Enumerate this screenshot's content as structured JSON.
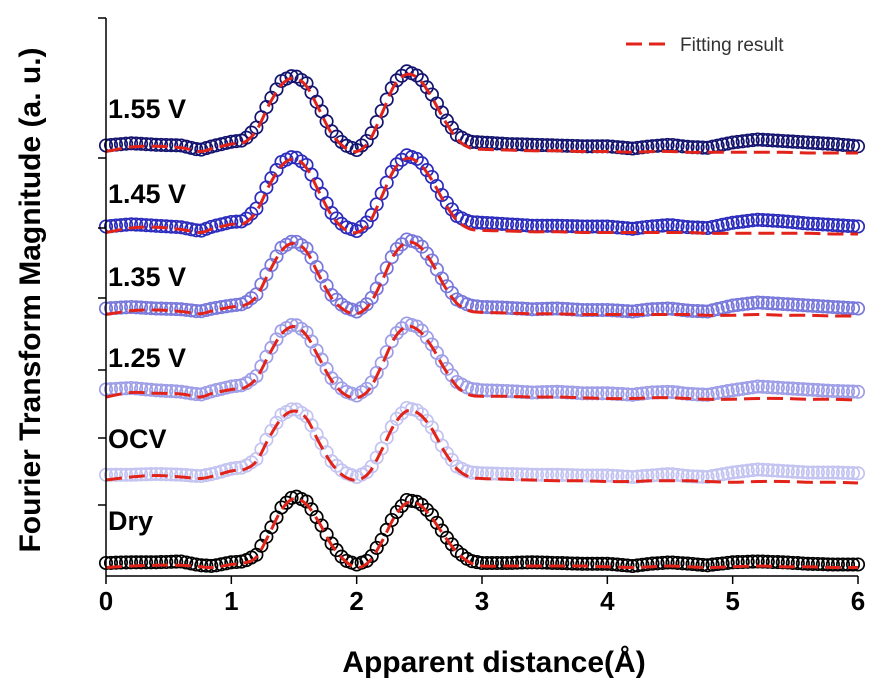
{
  "chart_data": {
    "type": "line",
    "title": "",
    "xlabel": "Apparent distance(Å)",
    "ylabel": "Fourier Transform Magnitude (a. u.)",
    "xlim": [
      0,
      6
    ],
    "x_ticks": [
      "0",
      "1",
      "2",
      "3",
      "4",
      "5",
      "6"
    ],
    "y_ticks_shown": false,
    "legend": {
      "position": "top-right",
      "entries": [
        "Fitting result"
      ]
    },
    "fit_color": "#e2231a",
    "x": [
      0.0,
      0.2,
      0.4,
      0.6,
      0.75,
      0.85,
      1.0,
      1.1,
      1.2,
      1.3,
      1.4,
      1.5,
      1.6,
      1.7,
      1.8,
      1.9,
      2.0,
      2.1,
      2.2,
      2.3,
      2.4,
      2.5,
      2.6,
      2.7,
      2.8,
      2.9,
      3.0,
      3.2,
      3.4,
      3.6,
      3.8,
      4.0,
      4.2,
      4.35,
      4.5,
      4.65,
      4.8,
      5.0,
      5.2,
      5.4,
      5.6,
      5.8,
      6.0
    ],
    "series": [
      {
        "name": "Dry",
        "color": "#000000",
        "values": [
          0.04,
          0.05,
          0.05,
          0.06,
          0.01,
          0.0,
          0.05,
          0.06,
          0.15,
          0.45,
          0.78,
          0.94,
          0.86,
          0.6,
          0.3,
          0.08,
          0.02,
          0.08,
          0.35,
          0.68,
          0.88,
          0.85,
          0.68,
          0.42,
          0.2,
          0.07,
          0.04,
          0.04,
          0.05,
          0.04,
          0.03,
          0.03,
          0.0,
          0.03,
          0.05,
          0.03,
          0.01,
          0.05,
          0.06,
          0.05,
          0.03,
          0.02,
          0.02
        ],
        "fit": [
          -0.02,
          0.0,
          0.01,
          0.01,
          -0.01,
          -0.02,
          0.02,
          0.04,
          0.12,
          0.42,
          0.75,
          0.9,
          0.82,
          0.58,
          0.28,
          0.08,
          -0.02,
          0.06,
          0.32,
          0.65,
          0.84,
          0.82,
          0.64,
          0.4,
          0.18,
          0.05,
          0.0,
          0.0,
          0.0,
          0.0,
          0.0,
          -0.01,
          -0.02,
          -0.01,
          0.0,
          -0.01,
          -0.02,
          -0.01,
          0.0,
          -0.01,
          -0.01,
          -0.02,
          -0.02
        ]
      },
      {
        "name": "OCV",
        "color": "#c3c3f2",
        "values": [
          0.07,
          0.07,
          0.08,
          0.07,
          0.05,
          0.08,
          0.15,
          0.17,
          0.28,
          0.6,
          0.87,
          0.96,
          0.85,
          0.55,
          0.25,
          0.1,
          0.04,
          0.12,
          0.42,
          0.78,
          0.96,
          0.92,
          0.7,
          0.4,
          0.18,
          0.1,
          0.09,
          0.08,
          0.07,
          0.07,
          0.06,
          0.06,
          0.04,
          0.06,
          0.08,
          0.05,
          0.04,
          0.1,
          0.14,
          0.12,
          0.1,
          0.1,
          0.09
        ],
        "fit": [
          0.0,
          0.04,
          0.06,
          0.04,
          0.02,
          0.05,
          0.12,
          0.14,
          0.25,
          0.56,
          0.82,
          0.92,
          0.82,
          0.5,
          0.22,
          0.05,
          0.0,
          0.1,
          0.4,
          0.74,
          0.92,
          0.88,
          0.68,
          0.38,
          0.15,
          0.04,
          0.02,
          0.01,
          0.0,
          -0.01,
          -0.01,
          -0.02,
          -0.02,
          -0.01,
          -0.01,
          -0.01,
          -0.02,
          -0.03,
          -0.02,
          -0.02,
          -0.03,
          -0.03,
          -0.04
        ]
      },
      {
        "name": "1.25 V",
        "color": "#9e9ee8",
        "values": [
          0.1,
          0.12,
          0.09,
          0.07,
          0.03,
          0.08,
          0.14,
          0.16,
          0.28,
          0.6,
          0.88,
          0.98,
          0.86,
          0.56,
          0.25,
          0.08,
          0.02,
          0.13,
          0.45,
          0.82,
          0.98,
          0.93,
          0.7,
          0.42,
          0.2,
          0.11,
          0.09,
          0.08,
          0.06,
          0.07,
          0.05,
          0.05,
          0.03,
          0.06,
          0.07,
          0.04,
          0.03,
          0.09,
          0.14,
          0.12,
          0.1,
          0.08,
          0.07
        ],
        "fit": [
          0.0,
          0.06,
          0.05,
          0.04,
          0.0,
          0.05,
          0.1,
          0.12,
          0.25,
          0.56,
          0.84,
          0.94,
          0.82,
          0.52,
          0.22,
          0.04,
          -0.01,
          0.1,
          0.42,
          0.78,
          0.94,
          0.88,
          0.67,
          0.38,
          0.14,
          0.03,
          0.01,
          0.01,
          0.0,
          0.0,
          -0.01,
          -0.02,
          -0.02,
          -0.01,
          -0.01,
          -0.02,
          -0.03,
          -0.03,
          -0.02,
          -0.02,
          -0.03,
          -0.03,
          -0.04
        ]
      },
      {
        "name": "1.35 V",
        "color": "#7878dc",
        "values": [
          0.06,
          0.08,
          0.06,
          0.05,
          0.02,
          0.06,
          0.1,
          0.12,
          0.25,
          0.58,
          0.87,
          0.97,
          0.86,
          0.55,
          0.24,
          0.08,
          0.02,
          0.14,
          0.45,
          0.82,
          0.98,
          0.93,
          0.7,
          0.4,
          0.18,
          0.1,
          0.08,
          0.07,
          0.05,
          0.06,
          0.04,
          0.04,
          0.02,
          0.05,
          0.06,
          0.03,
          0.02,
          0.1,
          0.14,
          0.12,
          0.1,
          0.08,
          0.06
        ],
        "fit": [
          -0.02,
          0.03,
          0.04,
          0.02,
          -0.01,
          0.03,
          0.08,
          0.1,
          0.22,
          0.54,
          0.83,
          0.93,
          0.82,
          0.5,
          0.2,
          0.04,
          -0.01,
          0.11,
          0.42,
          0.78,
          0.94,
          0.89,
          0.67,
          0.36,
          0.13,
          0.03,
          0.01,
          0.0,
          -0.01,
          -0.01,
          -0.02,
          -0.02,
          -0.02,
          -0.02,
          -0.02,
          -0.02,
          -0.03,
          -0.03,
          -0.02,
          -0.03,
          -0.03,
          -0.04,
          -0.04
        ]
      },
      {
        "name": "1.45 V",
        "color": "#2b2bbd",
        "values": [
          0.06,
          0.09,
          0.07,
          0.05,
          0.0,
          0.06,
          0.12,
          0.13,
          0.3,
          0.65,
          0.92,
          1.0,
          0.88,
          0.56,
          0.24,
          0.06,
          0.0,
          0.14,
          0.5,
          0.86,
          1.01,
          0.95,
          0.72,
          0.42,
          0.2,
          0.12,
          0.11,
          0.09,
          0.07,
          0.07,
          0.06,
          0.06,
          0.03,
          0.06,
          0.08,
          0.05,
          0.04,
          0.11,
          0.15,
          0.13,
          0.1,
          0.08,
          0.06
        ],
        "fit": [
          -0.02,
          0.04,
          0.05,
          0.02,
          -0.02,
          0.03,
          0.09,
          0.1,
          0.26,
          0.6,
          0.87,
          0.96,
          0.84,
          0.52,
          0.21,
          0.03,
          -0.02,
          0.11,
          0.46,
          0.82,
          0.97,
          0.9,
          0.68,
          0.38,
          0.14,
          0.03,
          0.01,
          0.0,
          -0.01,
          -0.01,
          -0.02,
          -0.02,
          -0.02,
          -0.02,
          -0.02,
          -0.02,
          -0.03,
          -0.03,
          -0.03,
          -0.03,
          -0.03,
          -0.04,
          -0.04
        ]
      },
      {
        "name": "1.55 V",
        "color": "#141470",
        "values": [
          0.06,
          0.09,
          0.07,
          0.06,
          0.0,
          0.05,
          0.11,
          0.13,
          0.3,
          0.64,
          0.92,
          1.0,
          0.89,
          0.58,
          0.25,
          0.07,
          0.0,
          0.15,
          0.52,
          0.9,
          1.05,
          0.98,
          0.74,
          0.44,
          0.2,
          0.11,
          0.1,
          0.08,
          0.07,
          0.06,
          0.05,
          0.05,
          0.02,
          0.05,
          0.07,
          0.04,
          0.03,
          0.1,
          0.14,
          0.12,
          0.1,
          0.08,
          0.05
        ],
        "fit": [
          -0.02,
          0.04,
          0.05,
          0.03,
          -0.02,
          0.02,
          0.08,
          0.1,
          0.26,
          0.6,
          0.87,
          0.96,
          0.85,
          0.54,
          0.22,
          0.04,
          -0.02,
          0.12,
          0.48,
          0.86,
          1.01,
          0.94,
          0.7,
          0.4,
          0.15,
          0.03,
          0.01,
          0.0,
          -0.01,
          -0.01,
          -0.02,
          -0.02,
          -0.03,
          -0.02,
          -0.02,
          -0.03,
          -0.03,
          -0.03,
          -0.03,
          -0.03,
          -0.04,
          -0.04,
          -0.04
        ]
      }
    ]
  }
}
